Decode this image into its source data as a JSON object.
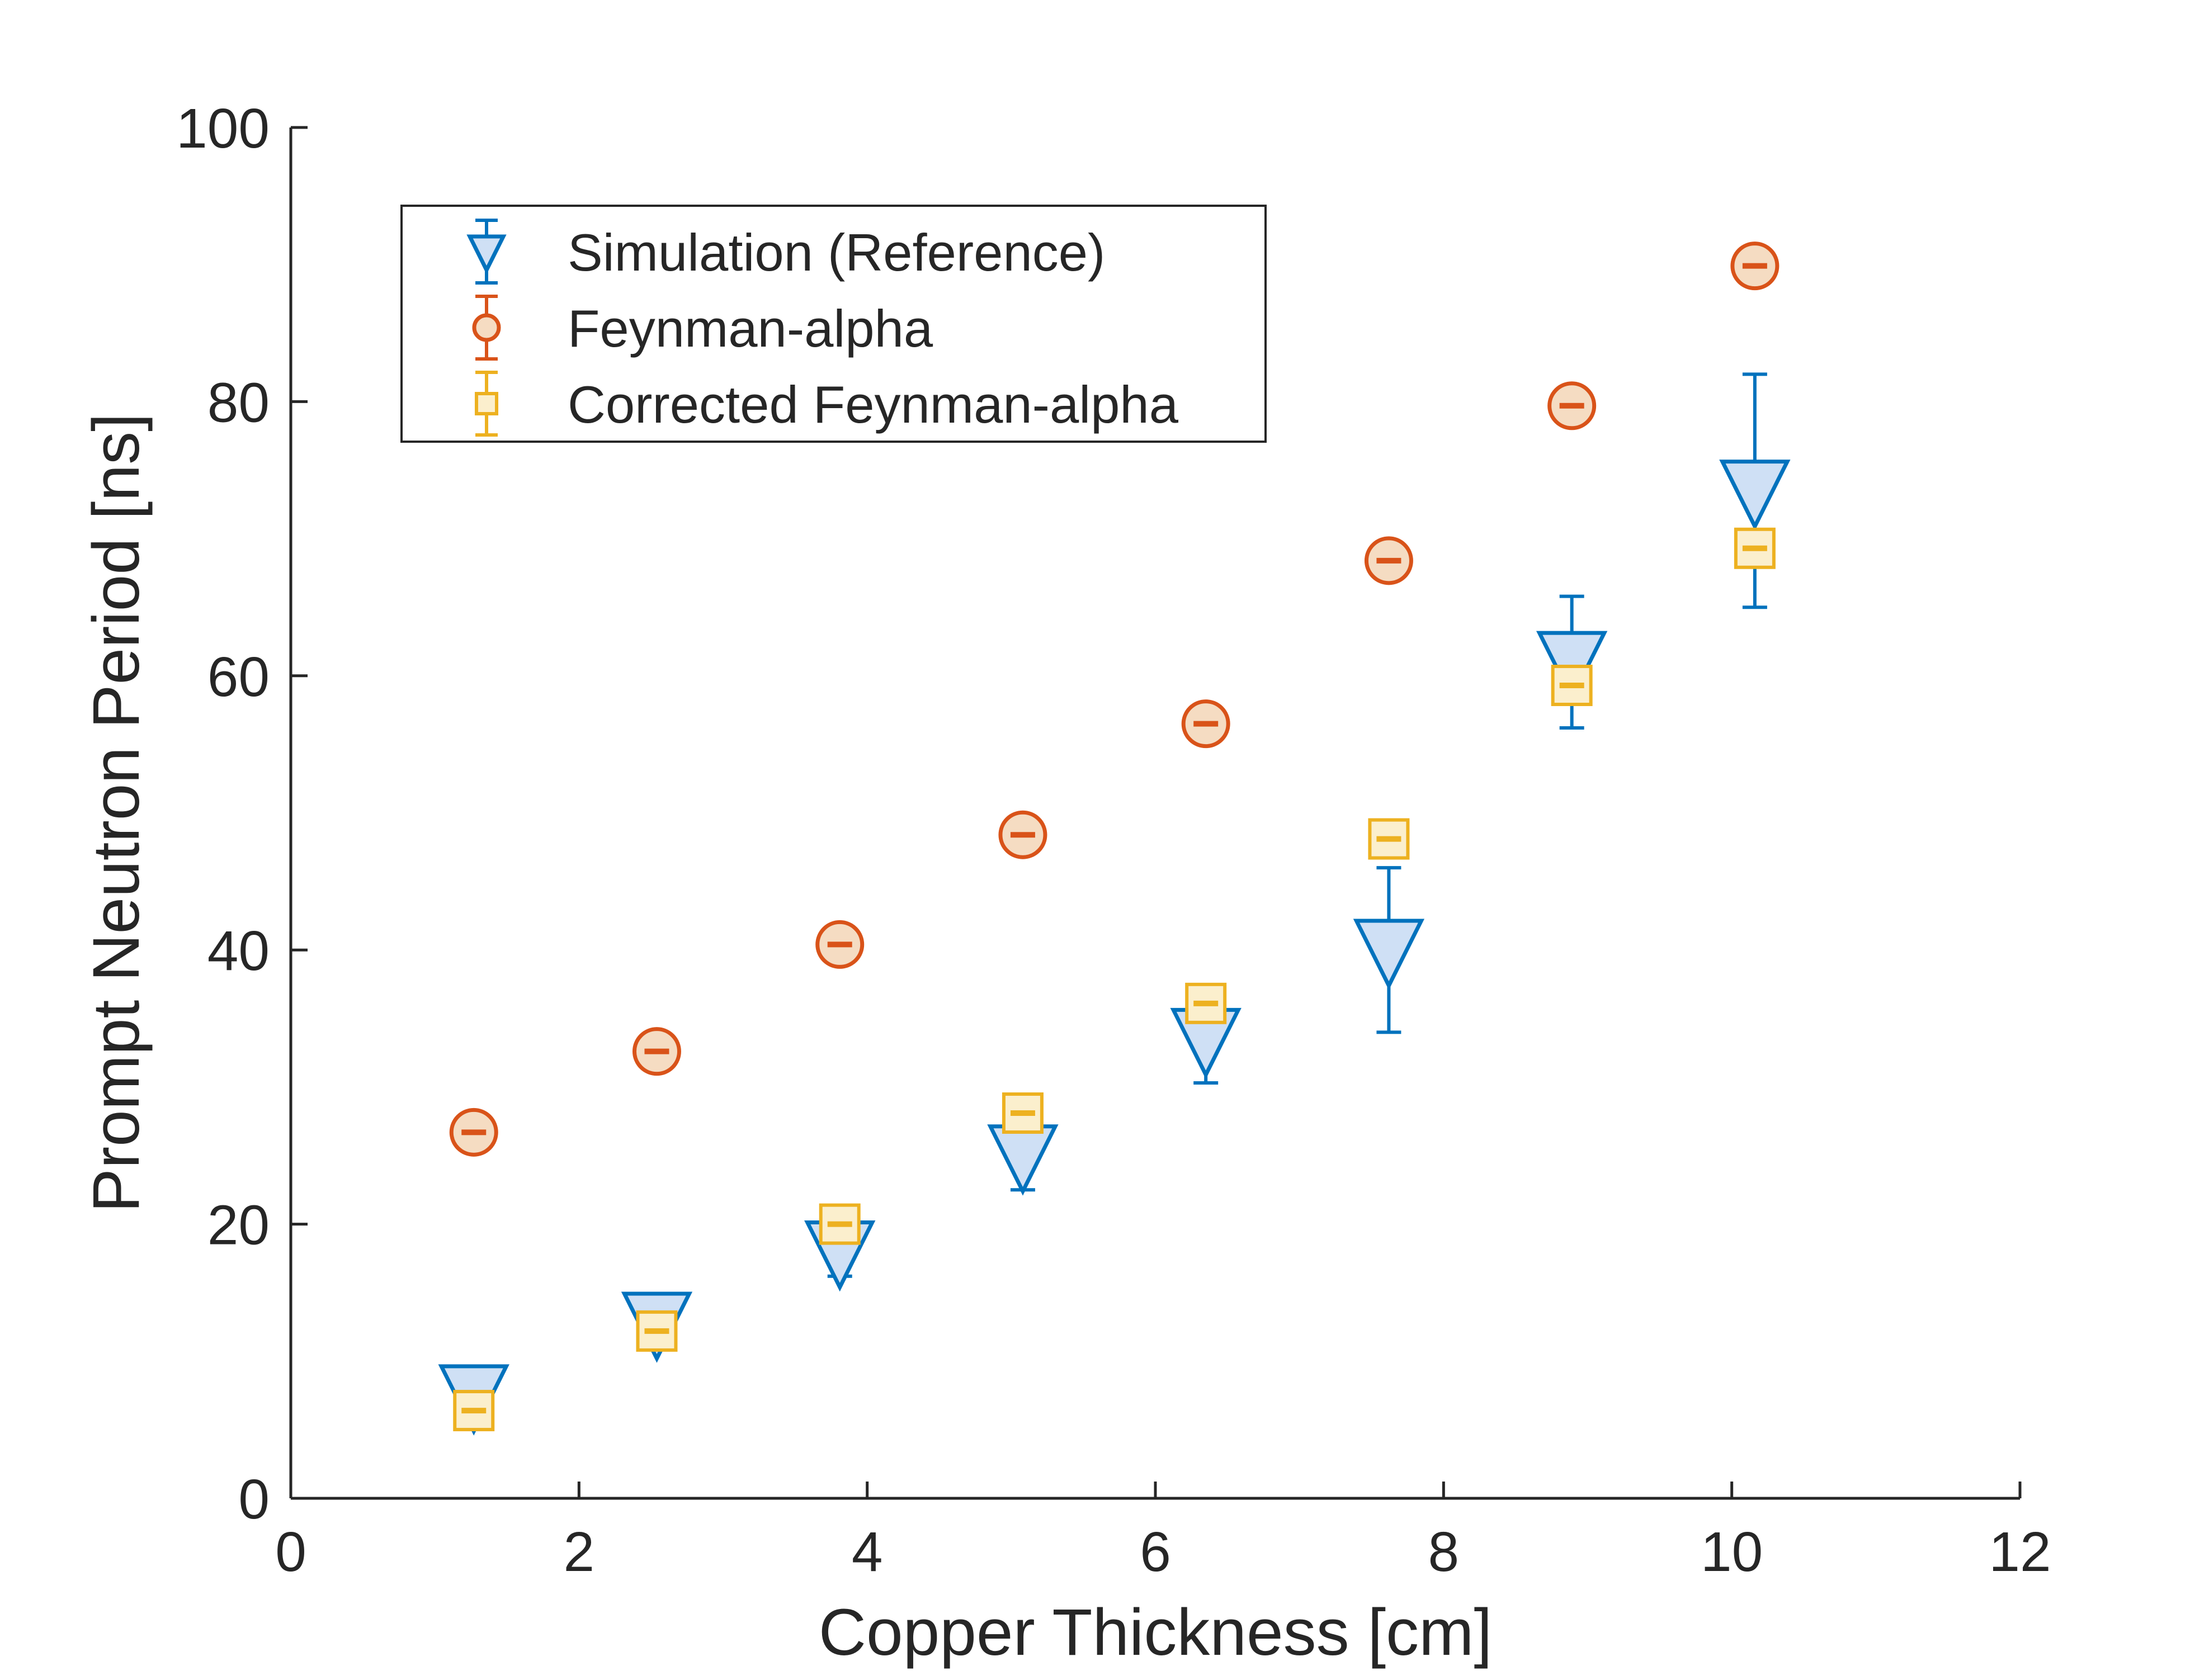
{
  "chart_data": {
    "type": "scatter",
    "title": "",
    "xlabel": "Copper Thickness [cm]",
    "ylabel": "Prompt Neutron Period [ns]",
    "xlim": [
      0,
      12
    ],
    "ylim": [
      0,
      100
    ],
    "xticks": [
      "0",
      "2",
      "4",
      "6",
      "8",
      "10",
      "12"
    ],
    "yticks": [
      "0",
      "20",
      "40",
      "60",
      "80",
      "100"
    ],
    "grid": false,
    "legend_position": "top-left",
    "x": [
      1.27,
      2.54,
      3.81,
      5.08,
      6.35,
      7.62,
      8.89,
      10.16
    ],
    "series": [
      {
        "name": "Simulation (Reference)",
        "marker": "triangle-down",
        "color": "#0072BD",
        "fill": "#CFE0F5",
        "values": [
          7.5,
          12.8,
          18.0,
          25.0,
          33.5,
          40.0,
          61.0,
          73.5
        ],
        "errors": [
          0.4,
          1.5,
          1.8,
          2.5,
          3.2,
          6.0,
          4.8,
          8.5
        ]
      },
      {
        "name": "Feynman-alpha",
        "marker": "circle",
        "color": "#D95319",
        "fill": "#F5DCC2",
        "values": [
          26.7,
          32.6,
          40.4,
          48.4,
          56.5,
          68.4,
          79.7,
          89.9
        ],
        "errors": [
          0.3,
          0.3,
          0.3,
          0.3,
          0.3,
          0.3,
          0.3,
          0.3
        ]
      },
      {
        "name": "Corrected Feynman-alpha",
        "marker": "square",
        "color": "#EDB120",
        "fill": "#FBEFCD",
        "values": [
          6.4,
          12.2,
          20.0,
          28.1,
          36.1,
          48.1,
          59.3,
          69.3
        ],
        "errors": [
          0.3,
          0.3,
          0.3,
          0.3,
          0.3,
          0.3,
          0.3,
          0.3
        ]
      }
    ]
  }
}
